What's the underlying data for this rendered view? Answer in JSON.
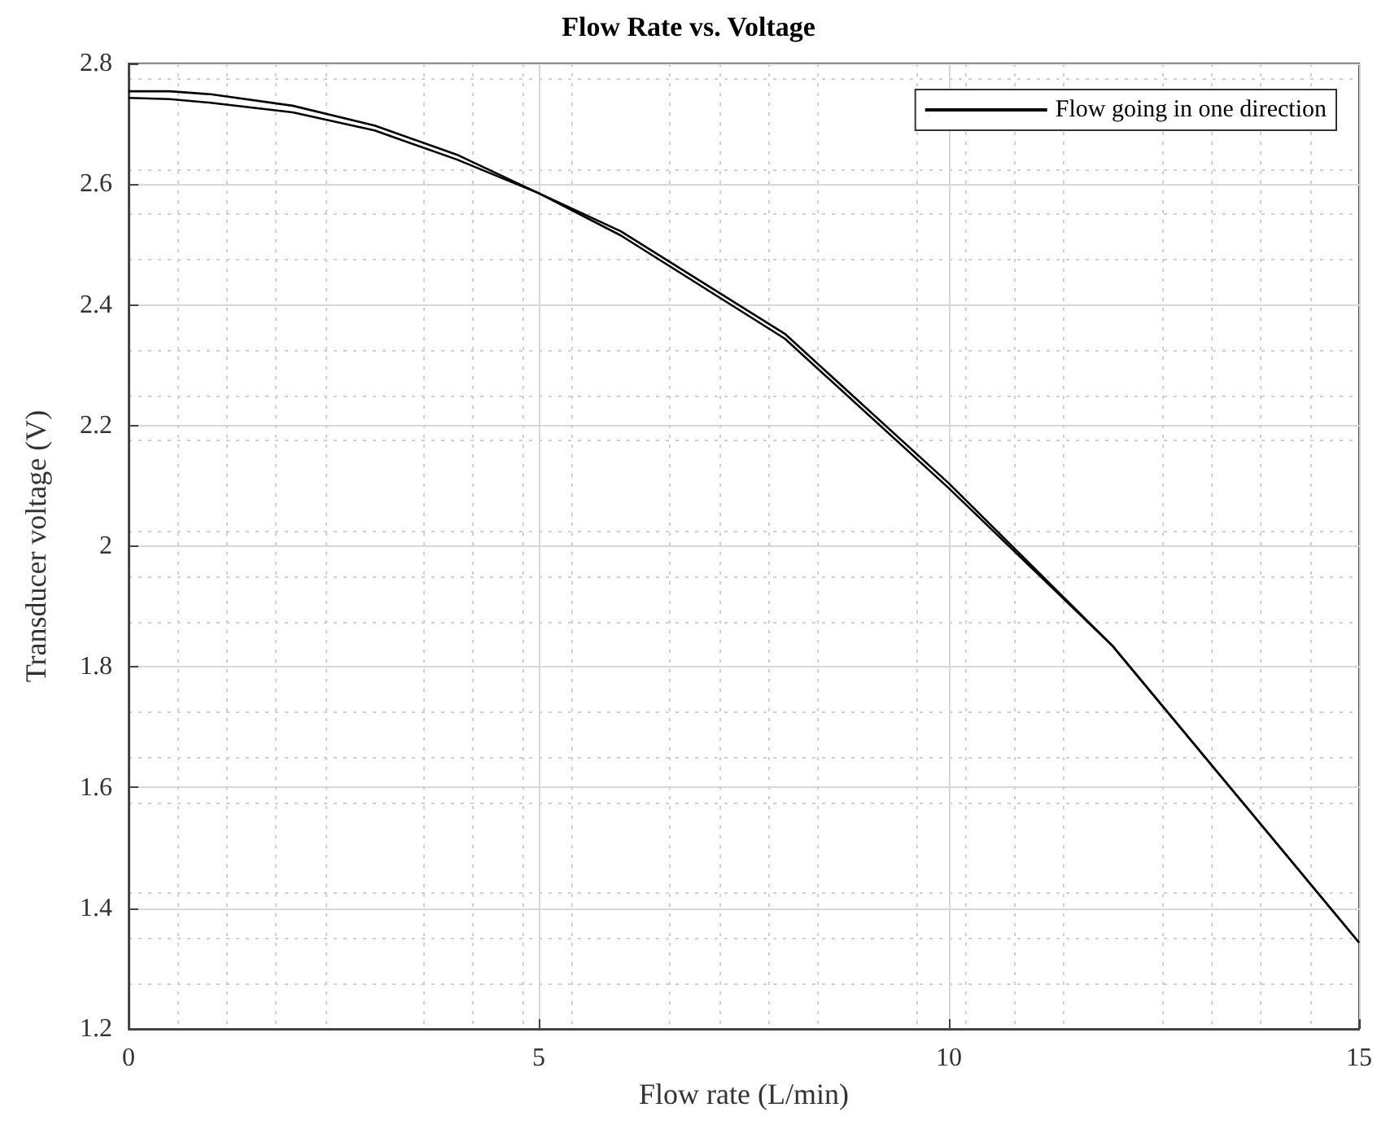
{
  "chart_data": {
    "type": "line",
    "title": "Flow Rate vs. Voltage",
    "xlabel": "Flow rate (L/min)",
    "ylabel": "Transducer voltage (V)",
    "x": [
      0,
      0.5,
      1,
      2,
      3,
      4,
      5,
      6,
      8,
      10,
      12,
      15
    ],
    "series": [
      {
        "name": "Flow going in one direction",
        "color": "#000000",
        "values": [
          2.754,
          2.754,
          2.749,
          2.73,
          2.697,
          2.649,
          2.585,
          2.522,
          2.352,
          2.104,
          1.834,
          1.343
        ]
      },
      {
        "color": "#000000",
        "values": [
          2.743,
          2.741,
          2.735,
          2.719,
          2.689,
          2.641,
          2.585,
          2.515,
          2.344,
          2.096,
          1.834,
          1.343
        ]
      }
    ],
    "xlim": [
      0,
      15
    ],
    "xticks": [
      0,
      5,
      10,
      15
    ],
    "ylim": [
      1.2,
      2.8
    ],
    "yticks": [
      1.2,
      1.4,
      1.6,
      1.8,
      2,
      2.2,
      2.4,
      2.6,
      2.8
    ],
    "grid": true,
    "legend": "top right",
    "marker": "none",
    "line_style": "solid"
  }
}
